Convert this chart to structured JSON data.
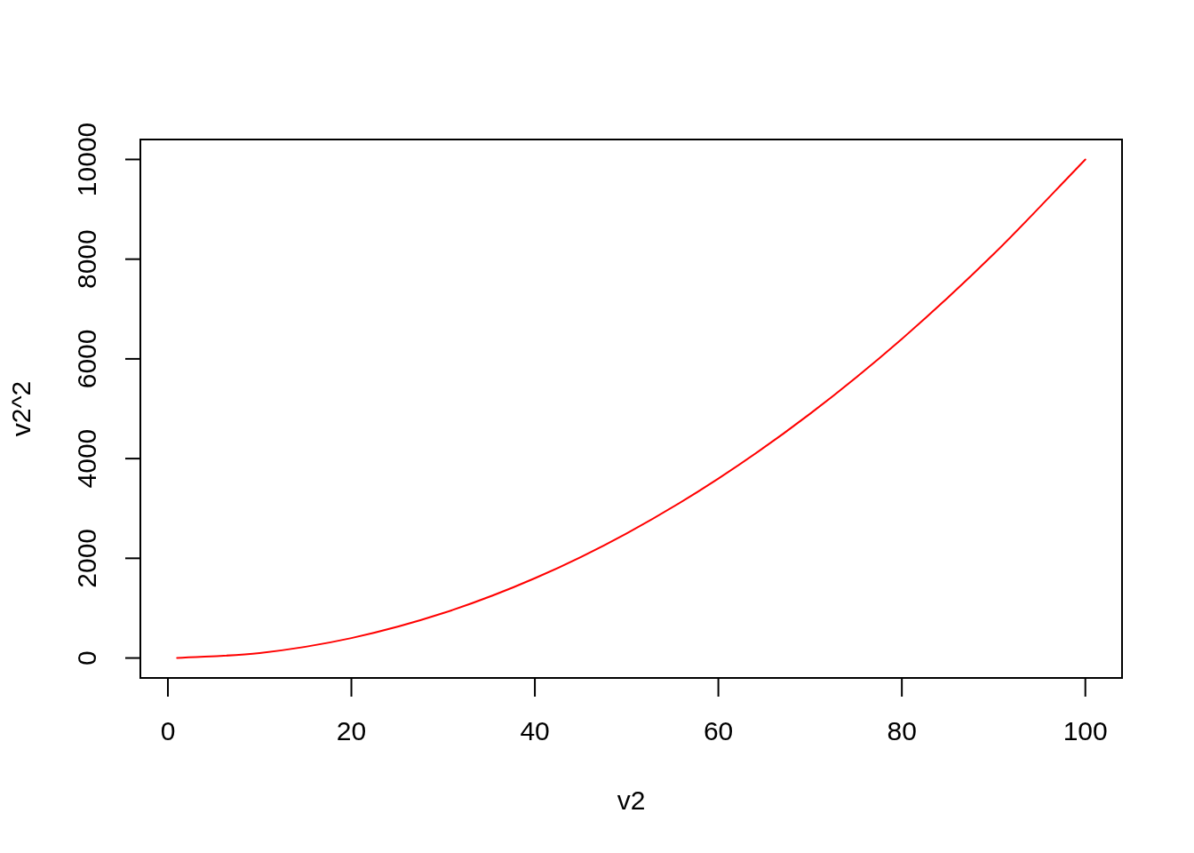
{
  "chart_data": {
    "type": "line",
    "xlabel": "v2",
    "ylabel": "v2^2",
    "x": [
      1,
      10,
      20,
      30,
      40,
      50,
      60,
      70,
      80,
      90,
      100
    ],
    "series": [
      {
        "color": "#ff0000",
        "values": [
          0,
          100,
          400,
          900,
          1600,
          2500,
          3600,
          4900,
          6400,
          8100,
          10000
        ]
      }
    ],
    "xlim": [
      -3,
      104
    ],
    "ylim": [
      -400,
      10400
    ],
    "xticks": [
      0,
      20,
      40,
      60,
      80,
      100
    ],
    "yticks": [
      0,
      2000,
      4000,
      6000,
      8000,
      10000
    ],
    "marker": "none",
    "line_style": "solid"
  }
}
